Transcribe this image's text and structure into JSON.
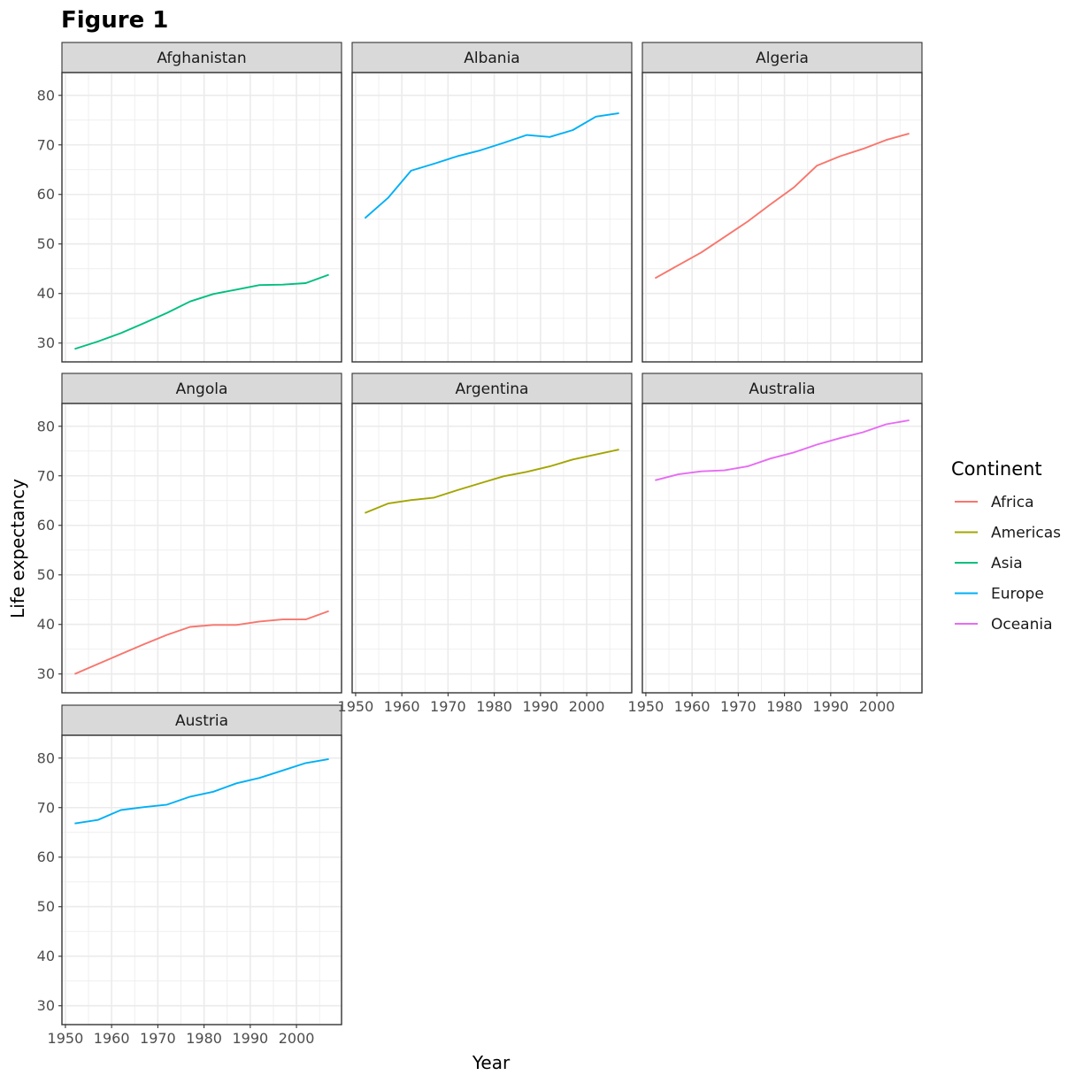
{
  "figure": {
    "title": "Figure 1"
  },
  "chart_data": {
    "type": "line",
    "xlabel": "Year",
    "ylabel": "Life expectancy",
    "xlim": [
      1952,
      2007
    ],
    "ylim": [
      28.8,
      82.0
    ],
    "x_ticks": [
      1950,
      1960,
      1970,
      1980,
      1990,
      2000
    ],
    "y_ticks": [
      30,
      40,
      50,
      60,
      70,
      80
    ],
    "grid": true,
    "legend": {
      "title": "Continent",
      "placement": "right",
      "entries": [
        {
          "name": "Africa",
          "color": "#F8766D"
        },
        {
          "name": "Americas",
          "color": "#A3A500"
        },
        {
          "name": "Asia",
          "color": "#00BF7D"
        },
        {
          "name": "Europe",
          "color": "#00B0F6"
        },
        {
          "name": "Oceania",
          "color": "#E76BF3"
        }
      ]
    },
    "x": [
      1952,
      1957,
      1962,
      1967,
      1972,
      1977,
      1982,
      1987,
      1992,
      1997,
      2002,
      2007
    ],
    "panels": [
      {
        "country": "Afghanistan",
        "continent": "Asia",
        "values": [
          28.8,
          30.3,
          32.0,
          34.0,
          36.1,
          38.4,
          39.9,
          40.8,
          41.7,
          41.8,
          42.1,
          43.8
        ]
      },
      {
        "country": "Albania",
        "continent": "Europe",
        "values": [
          55.2,
          59.3,
          64.8,
          66.2,
          67.7,
          68.9,
          70.4,
          72.0,
          71.6,
          73.0,
          75.7,
          76.4
        ]
      },
      {
        "country": "Algeria",
        "continent": "Africa",
        "values": [
          43.1,
          45.7,
          48.3,
          51.4,
          54.5,
          58.0,
          61.4,
          65.8,
          67.7,
          69.2,
          71.0,
          72.3
        ]
      },
      {
        "country": "Angola",
        "continent": "Africa",
        "values": [
          30.0,
          32.0,
          34.0,
          36.0,
          37.9,
          39.5,
          39.9,
          39.9,
          40.6,
          41.0,
          41.0,
          42.7
        ]
      },
      {
        "country": "Argentina",
        "continent": "Americas",
        "values": [
          62.5,
          64.4,
          65.1,
          65.6,
          67.1,
          68.5,
          69.9,
          70.8,
          71.9,
          73.3,
          74.3,
          75.3
        ]
      },
      {
        "country": "Australia",
        "continent": "Oceania",
        "values": [
          69.1,
          70.3,
          70.9,
          71.1,
          71.9,
          73.5,
          74.7,
          76.3,
          77.6,
          78.8,
          80.4,
          81.2
        ]
      },
      {
        "country": "Austria",
        "continent": "Europe",
        "values": [
          66.8,
          67.5,
          69.5,
          70.1,
          70.6,
          72.2,
          73.2,
          74.9,
          76.0,
          77.5,
          79.0,
          79.8
        ]
      }
    ]
  }
}
